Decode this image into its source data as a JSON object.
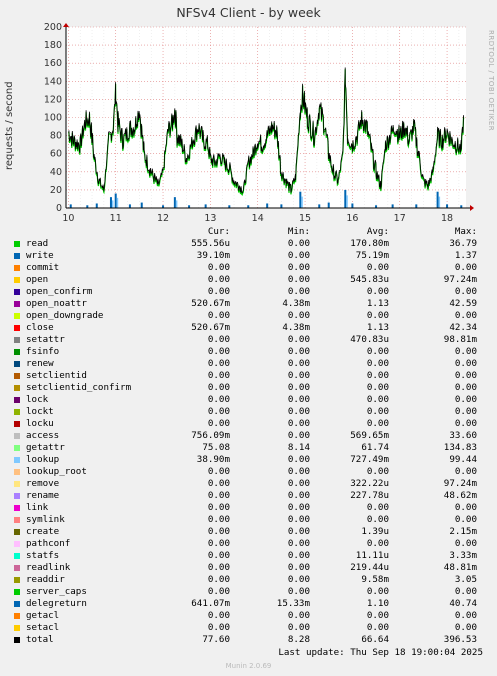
{
  "chart_data": {
    "type": "line",
    "title": "NFSv4 Client - by week",
    "ylabel": "requests / second",
    "ylim": [
      0,
      200
    ],
    "yticks": [
      0,
      20,
      40,
      60,
      80,
      100,
      120,
      140,
      160,
      180,
      200
    ],
    "xlim": [
      9.95,
      18.4
    ],
    "xticks": [
      "10",
      "11",
      "12",
      "13",
      "14",
      "15",
      "16",
      "17",
      "18"
    ],
    "total_series": [
      [
        10.0,
        85
      ],
      [
        10.1,
        75
      ],
      [
        10.25,
        70
      ],
      [
        10.35,
        95
      ],
      [
        10.45,
        100
      ],
      [
        10.55,
        55
      ],
      [
        10.65,
        30
      ],
      [
        10.75,
        20
      ],
      [
        10.85,
        75
      ],
      [
        10.95,
        90
      ],
      [
        11.0,
        130
      ],
      [
        11.05,
        95
      ],
      [
        11.15,
        75
      ],
      [
        11.3,
        88
      ],
      [
        11.4,
        90
      ],
      [
        11.5,
        110
      ],
      [
        11.6,
        60
      ],
      [
        11.75,
        40
      ],
      [
        11.9,
        25
      ],
      [
        12.0,
        40
      ],
      [
        12.1,
        85
      ],
      [
        12.2,
        95
      ],
      [
        12.25,
        110
      ],
      [
        12.3,
        80
      ],
      [
        12.4,
        70
      ],
      [
        12.5,
        55
      ],
      [
        12.65,
        78
      ],
      [
        12.75,
        90
      ],
      [
        12.85,
        75
      ],
      [
        12.95,
        70
      ],
      [
        13.0,
        55
      ],
      [
        13.1,
        50
      ],
      [
        13.2,
        58
      ],
      [
        13.3,
        50
      ],
      [
        13.4,
        45
      ],
      [
        13.5,
        30
      ],
      [
        13.6,
        25
      ],
      [
        13.7,
        20
      ],
      [
        13.8,
        50
      ],
      [
        13.9,
        60
      ],
      [
        14.0,
        75
      ],
      [
        14.1,
        70
      ],
      [
        14.2,
        80
      ],
      [
        14.3,
        90
      ],
      [
        14.4,
        85
      ],
      [
        14.5,
        40
      ],
      [
        14.6,
        30
      ],
      [
        14.7,
        20
      ],
      [
        14.8,
        35
      ],
      [
        14.9,
        110
      ],
      [
        14.95,
        125
      ],
      [
        15.05,
        100
      ],
      [
        15.2,
        80
      ],
      [
        15.3,
        110
      ],
      [
        15.4,
        95
      ],
      [
        15.5,
        60
      ],
      [
        15.6,
        40
      ],
      [
        15.7,
        30
      ],
      [
        15.8,
        60
      ],
      [
        15.85,
        150
      ],
      [
        15.9,
        80
      ],
      [
        16.0,
        70
      ],
      [
        16.1,
        80
      ],
      [
        16.2,
        100
      ],
      [
        16.3,
        90
      ],
      [
        16.4,
        65
      ],
      [
        16.5,
        40
      ],
      [
        16.6,
        25
      ],
      [
        16.7,
        70
      ],
      [
        16.8,
        80
      ],
      [
        16.9,
        90
      ],
      [
        17.0,
        80
      ],
      [
        17.1,
        90
      ],
      [
        17.2,
        75
      ],
      [
        17.3,
        90
      ],
      [
        17.4,
        60
      ],
      [
        17.5,
        30
      ],
      [
        17.6,
        25
      ],
      [
        17.7,
        40
      ],
      [
        17.8,
        80
      ],
      [
        17.9,
        75
      ],
      [
        18.0,
        85
      ],
      [
        18.1,
        75
      ],
      [
        18.2,
        70
      ],
      [
        18.3,
        65
      ],
      [
        18.35,
        100
      ]
    ],
    "spike_series": [
      [
        10.05,
        4
      ],
      [
        10.4,
        3
      ],
      [
        10.6,
        5
      ],
      [
        10.9,
        12
      ],
      [
        11.0,
        16
      ],
      [
        11.3,
        4
      ],
      [
        11.55,
        6
      ],
      [
        12.0,
        3
      ],
      [
        12.25,
        12
      ],
      [
        12.55,
        3
      ],
      [
        12.9,
        4
      ],
      [
        13.4,
        3
      ],
      [
        13.8,
        3
      ],
      [
        14.2,
        5
      ],
      [
        14.5,
        4
      ],
      [
        14.9,
        18
      ],
      [
        15.3,
        4
      ],
      [
        15.5,
        6
      ],
      [
        15.85,
        20
      ],
      [
        16.0,
        5
      ],
      [
        16.5,
        3
      ],
      [
        16.85,
        4
      ],
      [
        17.35,
        4
      ],
      [
        17.8,
        18
      ],
      [
        18.0,
        4
      ],
      [
        18.3,
        3
      ]
    ],
    "legend_columns": [
      "Cur:",
      "Min:",
      "Avg:",
      "Max:"
    ],
    "legend": [
      {
        "name": "read",
        "color": "#00cc00",
        "cur": "555.56u",
        "min": "0.00",
        "avg": "170.80m",
        "max": "36.79"
      },
      {
        "name": "write",
        "color": "#0066b3",
        "cur": "39.10m",
        "min": "0.00",
        "avg": "75.19m",
        "max": "1.37"
      },
      {
        "name": "commit",
        "color": "#ff8000",
        "cur": "0.00",
        "min": "0.00",
        "avg": "0.00",
        "max": "0.00"
      },
      {
        "name": "open",
        "color": "#ffcc00",
        "cur": "0.00",
        "min": "0.00",
        "avg": "545.83u",
        "max": "97.24m"
      },
      {
        "name": "open_confirm",
        "color": "#330099",
        "cur": "0.00",
        "min": "0.00",
        "avg": "0.00",
        "max": "0.00"
      },
      {
        "name": "open_noattr",
        "color": "#990099",
        "cur": "520.67m",
        "min": "4.38m",
        "avg": "1.13",
        "max": "42.59"
      },
      {
        "name": "open_downgrade",
        "color": "#ccff00",
        "cur": "0.00",
        "min": "0.00",
        "avg": "0.00",
        "max": "0.00"
      },
      {
        "name": "close",
        "color": "#ff0000",
        "cur": "520.67m",
        "min": "4.38m",
        "avg": "1.13",
        "max": "42.34"
      },
      {
        "name": "setattr",
        "color": "#808080",
        "cur": "0.00",
        "min": "0.00",
        "avg": "470.83u",
        "max": "98.81m"
      },
      {
        "name": "fsinfo",
        "color": "#008f00",
        "cur": "0.00",
        "min": "0.00",
        "avg": "0.00",
        "max": "0.00"
      },
      {
        "name": "renew",
        "color": "#00487d",
        "cur": "0.00",
        "min": "0.00",
        "avg": "0.00",
        "max": "0.00"
      },
      {
        "name": "setclientid",
        "color": "#b35a00",
        "cur": "0.00",
        "min": "0.00",
        "avg": "0.00",
        "max": "0.00"
      },
      {
        "name": "setclientid_confirm",
        "color": "#b38f00",
        "cur": "0.00",
        "min": "0.00",
        "avg": "0.00",
        "max": "0.00"
      },
      {
        "name": "lock",
        "color": "#6b006b",
        "cur": "0.00",
        "min": "0.00",
        "avg": "0.00",
        "max": "0.00"
      },
      {
        "name": "lockt",
        "color": "#8fb300",
        "cur": "0.00",
        "min": "0.00",
        "avg": "0.00",
        "max": "0.00"
      },
      {
        "name": "locku",
        "color": "#b30000",
        "cur": "0.00",
        "min": "0.00",
        "avg": "0.00",
        "max": "0.00"
      },
      {
        "name": "access",
        "color": "#bebebe",
        "cur": "756.09m",
        "min": "0.00",
        "avg": "569.65m",
        "max": "33.60"
      },
      {
        "name": "getattr",
        "color": "#80ff80",
        "cur": "75.08",
        "min": "8.14",
        "avg": "61.74",
        "max": "134.83"
      },
      {
        "name": "lookup",
        "color": "#80c9ff",
        "cur": "38.90m",
        "min": "0.00",
        "avg": "727.49m",
        "max": "99.44"
      },
      {
        "name": "lookup_root",
        "color": "#ffc080",
        "cur": "0.00",
        "min": "0.00",
        "avg": "0.00",
        "max": "0.00"
      },
      {
        "name": "remove",
        "color": "#ffe680",
        "cur": "0.00",
        "min": "0.00",
        "avg": "322.22u",
        "max": "97.24m"
      },
      {
        "name": "rename",
        "color": "#aa80ff",
        "cur": "0.00",
        "min": "0.00",
        "avg": "227.78u",
        "max": "48.62m"
      },
      {
        "name": "link",
        "color": "#ee00cc",
        "cur": "0.00",
        "min": "0.00",
        "avg": "0.00",
        "max": "0.00"
      },
      {
        "name": "symlink",
        "color": "#ff8080",
        "cur": "0.00",
        "min": "0.00",
        "avg": "0.00",
        "max": "0.00"
      },
      {
        "name": "create",
        "color": "#666600",
        "cur": "0.00",
        "min": "0.00",
        "avg": "1.39u",
        "max": "2.15m"
      },
      {
        "name": "pathconf",
        "color": "#ffbfff",
        "cur": "0.00",
        "min": "0.00",
        "avg": "0.00",
        "max": "0.00"
      },
      {
        "name": "statfs",
        "color": "#00ffcc",
        "cur": "0.00",
        "min": "0.00",
        "avg": "11.11u",
        "max": "3.33m"
      },
      {
        "name": "readlink",
        "color": "#cc6699",
        "cur": "0.00",
        "min": "0.00",
        "avg": "219.44u",
        "max": "48.81m"
      },
      {
        "name": "readdir",
        "color": "#999900",
        "cur": "0.00",
        "min": "0.00",
        "avg": "9.58m",
        "max": "3.05"
      },
      {
        "name": "server_caps",
        "color": "#00cc00",
        "cur": "0.00",
        "min": "0.00",
        "avg": "0.00",
        "max": "0.00"
      },
      {
        "name": "delegreturn",
        "color": "#0066b3",
        "cur": "641.07m",
        "min": "15.33m",
        "avg": "1.10",
        "max": "40.74"
      },
      {
        "name": "getacl",
        "color": "#ff8000",
        "cur": "0.00",
        "min": "0.00",
        "avg": "0.00",
        "max": "0.00"
      },
      {
        "name": "setacl",
        "color": "#ffcc00",
        "cur": "0.00",
        "min": "0.00",
        "avg": "0.00",
        "max": "0.00"
      },
      {
        "name": "total",
        "color": "#000000",
        "cur": "77.60",
        "min": "8.28",
        "avg": "66.64",
        "max": "396.53"
      }
    ]
  },
  "footer": {
    "last_update": "Last update: Thu Sep 18 19:00:04 2025",
    "munin": "Munin 2.0.69",
    "watermark": "RRDTOOL / TOBI OETIKER"
  },
  "colors": {
    "getattr_line": "#00cc00",
    "total_line": "#000000",
    "spikes": "#0066b3",
    "grid": "#e08080"
  }
}
